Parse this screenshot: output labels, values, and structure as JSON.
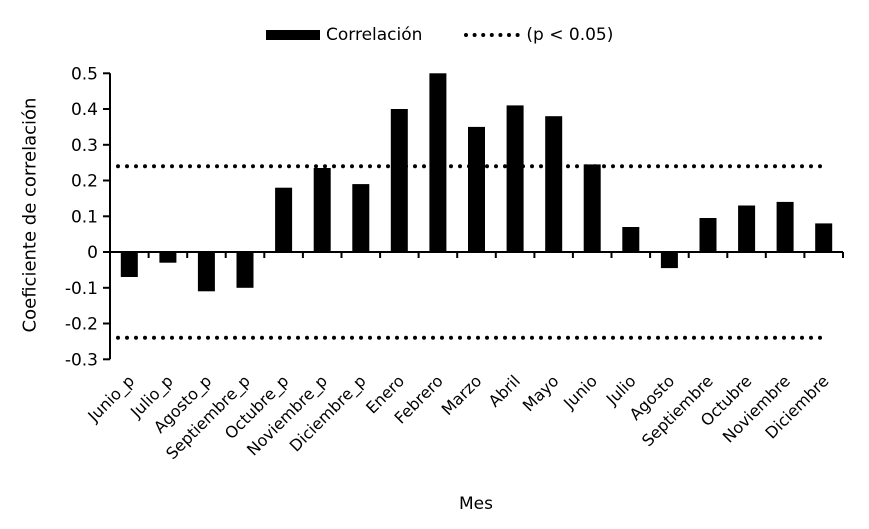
{
  "legend": {
    "correlation_label": "Correlación",
    "significance_label": "(p < 0.05)"
  },
  "axes": {
    "y_title": "Coeficiente de correlación",
    "x_title": "Mes"
  },
  "colors": {
    "bar": "#000000",
    "significance_line": "#000000",
    "axis": "#000000",
    "background": "#ffffff",
    "text": "#000000"
  },
  "chart_data": {
    "type": "bar",
    "title": "",
    "xlabel": "Mes",
    "ylabel": "Coeficiente de correlación",
    "categories": [
      "Junio_p",
      "Julio_p",
      "Agosto_p",
      "Septiembre_p",
      "Octubre_p",
      "Noviembre_p",
      "Diciembre_p",
      "Enero",
      "Febrero",
      "Marzo",
      "Abril",
      "Mayo",
      "Junio",
      "Julio",
      "Agosto",
      "Septiembre",
      "Octubre",
      "Noviembre",
      "Diciembre"
    ],
    "series": [
      {
        "name": "Correlación",
        "values": [
          -0.07,
          -0.03,
          -0.11,
          -0.1,
          0.18,
          0.235,
          0.19,
          0.4,
          0.5,
          0.35,
          0.41,
          0.38,
          0.245,
          0.07,
          -0.045,
          0.095,
          0.13,
          0.14,
          0.08
        ]
      }
    ],
    "significance_lines": {
      "label": "(p < 0.05)",
      "values": [
        0.24,
        -0.24
      ],
      "style": "dotted"
    },
    "ylim": [
      -0.3,
      0.5
    ],
    "yticks": [
      0.5,
      0.4,
      0.3,
      0.2,
      0.1,
      0,
      -0.1,
      -0.2,
      -0.3
    ],
    "grid": false,
    "legend_position": "top-center",
    "bar_color": "#000000"
  }
}
